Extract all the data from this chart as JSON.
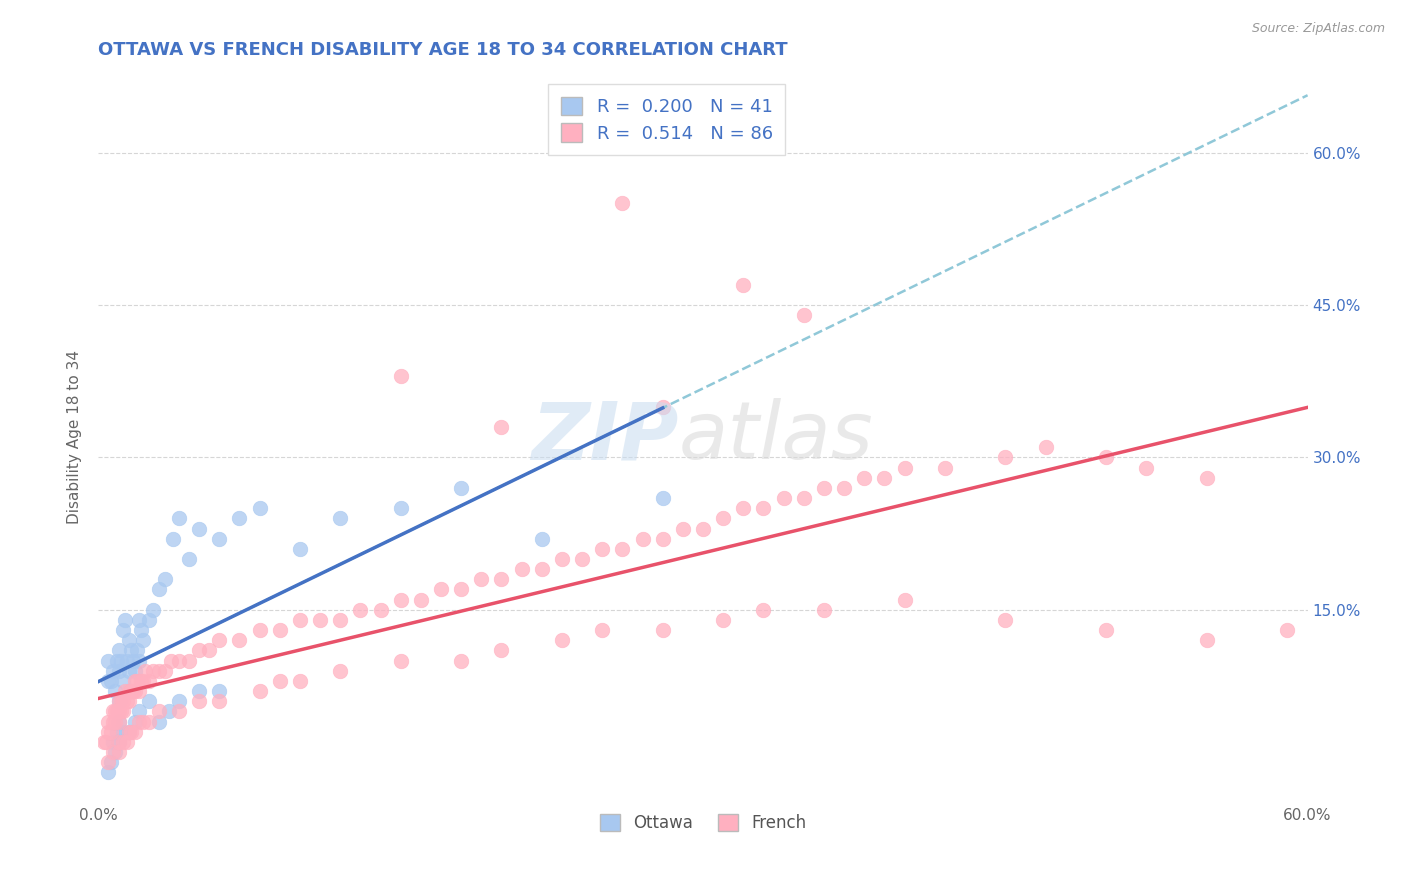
{
  "title": "OTTAWA VS FRENCH DISABILITY AGE 18 TO 34 CORRELATION CHART",
  "source": "Source: ZipAtlas.com",
  "ylabel": "Disability Age 18 to 34",
  "xlim": [
    0.0,
    0.6
  ],
  "ylim": [
    -0.04,
    0.68
  ],
  "ytick_positions": [
    0.15,
    0.3,
    0.45,
    0.6
  ],
  "ytick_labels": [
    "15.0%",
    "30.0%",
    "45.0%",
    "60.0%"
  ],
  "xtick_positions": [
    0.0,
    0.6
  ],
  "xtick_labels": [
    "0.0%",
    "60.0%"
  ],
  "ottawa_R": 0.2,
  "ottawa_N": 41,
  "french_R": 0.514,
  "french_N": 86,
  "ottawa_color": "#A8C8F0",
  "french_color": "#FFB0C0",
  "ottawa_line_color": "#4472C4",
  "french_line_color": "#E8526A",
  "dash_line_color": "#90C8D8",
  "bg_color": "#FFFFFF",
  "grid_color": "#CCCCCC",
  "title_color": "#4472C4",
  "legend_text_color": "#4472C4",
  "right_tick_color": "#4472C4",
  "ottawa_x": [
    0.005,
    0.005,
    0.006,
    0.007,
    0.008,
    0.009,
    0.01,
    0.01,
    0.01,
    0.011,
    0.012,
    0.012,
    0.013,
    0.014,
    0.015,
    0.015,
    0.016,
    0.017,
    0.018,
    0.019,
    0.02,
    0.02,
    0.021,
    0.022,
    0.025,
    0.027,
    0.03,
    0.033,
    0.037,
    0.04,
    0.045,
    0.05,
    0.06,
    0.07,
    0.08,
    0.1,
    0.12,
    0.15,
    0.18,
    0.22,
    0.28
  ],
  "ottawa_y": [
    0.08,
    0.1,
    0.08,
    0.09,
    0.07,
    0.1,
    0.09,
    0.11,
    0.06,
    0.1,
    0.08,
    0.13,
    0.14,
    0.1,
    0.09,
    0.12,
    0.11,
    0.1,
    0.09,
    0.11,
    0.1,
    0.14,
    0.13,
    0.12,
    0.14,
    0.15,
    0.17,
    0.18,
    0.22,
    0.24,
    0.2,
    0.23,
    0.22,
    0.24,
    0.25,
    0.21,
    0.24,
    0.25,
    0.27,
    0.22,
    0.26
  ],
  "ottawa_below_x": [
    0.005,
    0.006,
    0.007,
    0.008,
    0.009,
    0.01,
    0.01,
    0.012,
    0.015,
    0.018,
    0.02,
    0.025,
    0.03,
    0.035,
    0.04,
    0.05,
    0.06
  ],
  "ottawa_below_y": [
    -0.01,
    0.0,
    0.02,
    0.01,
    0.03,
    0.02,
    0.04,
    0.03,
    0.03,
    0.04,
    0.05,
    0.06,
    0.04,
    0.05,
    0.06,
    0.07,
    0.07
  ],
  "french_x": [
    0.003,
    0.004,
    0.005,
    0.005,
    0.006,
    0.007,
    0.007,
    0.008,
    0.008,
    0.009,
    0.01,
    0.01,
    0.01,
    0.011,
    0.011,
    0.012,
    0.012,
    0.013,
    0.014,
    0.015,
    0.015,
    0.016,
    0.017,
    0.018,
    0.018,
    0.019,
    0.02,
    0.021,
    0.022,
    0.023,
    0.025,
    0.027,
    0.03,
    0.033,
    0.036,
    0.04,
    0.045,
    0.05,
    0.055,
    0.06,
    0.07,
    0.08,
    0.09,
    0.1,
    0.11,
    0.12,
    0.13,
    0.14,
    0.15,
    0.16,
    0.17,
    0.18,
    0.19,
    0.2,
    0.21,
    0.22,
    0.23,
    0.24,
    0.25,
    0.26,
    0.27,
    0.28,
    0.29,
    0.3,
    0.31,
    0.32,
    0.33,
    0.34,
    0.35,
    0.36,
    0.37,
    0.38,
    0.39,
    0.4,
    0.42,
    0.45,
    0.47,
    0.5,
    0.52,
    0.55,
    0.32,
    0.28,
    0.35,
    0.2,
    0.15,
    0.26
  ],
  "french_y": [
    0.02,
    0.02,
    0.03,
    0.04,
    0.03,
    0.04,
    0.05,
    0.04,
    0.05,
    0.05,
    0.04,
    0.05,
    0.06,
    0.05,
    0.06,
    0.05,
    0.06,
    0.07,
    0.06,
    0.06,
    0.07,
    0.07,
    0.07,
    0.07,
    0.08,
    0.08,
    0.07,
    0.08,
    0.08,
    0.09,
    0.08,
    0.09,
    0.09,
    0.09,
    0.1,
    0.1,
    0.1,
    0.11,
    0.11,
    0.12,
    0.12,
    0.13,
    0.13,
    0.14,
    0.14,
    0.14,
    0.15,
    0.15,
    0.16,
    0.16,
    0.17,
    0.17,
    0.18,
    0.18,
    0.19,
    0.19,
    0.2,
    0.2,
    0.21,
    0.21,
    0.22,
    0.22,
    0.23,
    0.23,
    0.24,
    0.25,
    0.25,
    0.26,
    0.26,
    0.27,
    0.27,
    0.28,
    0.28,
    0.29,
    0.29,
    0.3,
    0.31,
    0.3,
    0.29,
    0.28,
    0.47,
    0.35,
    0.44,
    0.33,
    0.38,
    0.55
  ],
  "french_below_x": [
    0.005,
    0.007,
    0.01,
    0.01,
    0.012,
    0.014,
    0.015,
    0.016,
    0.018,
    0.02,
    0.022,
    0.025,
    0.03,
    0.04,
    0.05,
    0.06,
    0.08,
    0.09,
    0.1,
    0.12,
    0.15,
    0.18,
    0.2,
    0.23,
    0.25,
    0.28,
    0.31,
    0.33,
    0.36,
    0.4,
    0.45,
    0.5,
    0.55,
    0.59
  ],
  "french_below_y": [
    0.0,
    0.01,
    0.01,
    0.02,
    0.02,
    0.02,
    0.03,
    0.03,
    0.03,
    0.04,
    0.04,
    0.04,
    0.05,
    0.05,
    0.06,
    0.06,
    0.07,
    0.08,
    0.08,
    0.09,
    0.1,
    0.1,
    0.11,
    0.12,
    0.13,
    0.13,
    0.14,
    0.15,
    0.15,
    0.16,
    0.14,
    0.13,
    0.12,
    0.13
  ]
}
